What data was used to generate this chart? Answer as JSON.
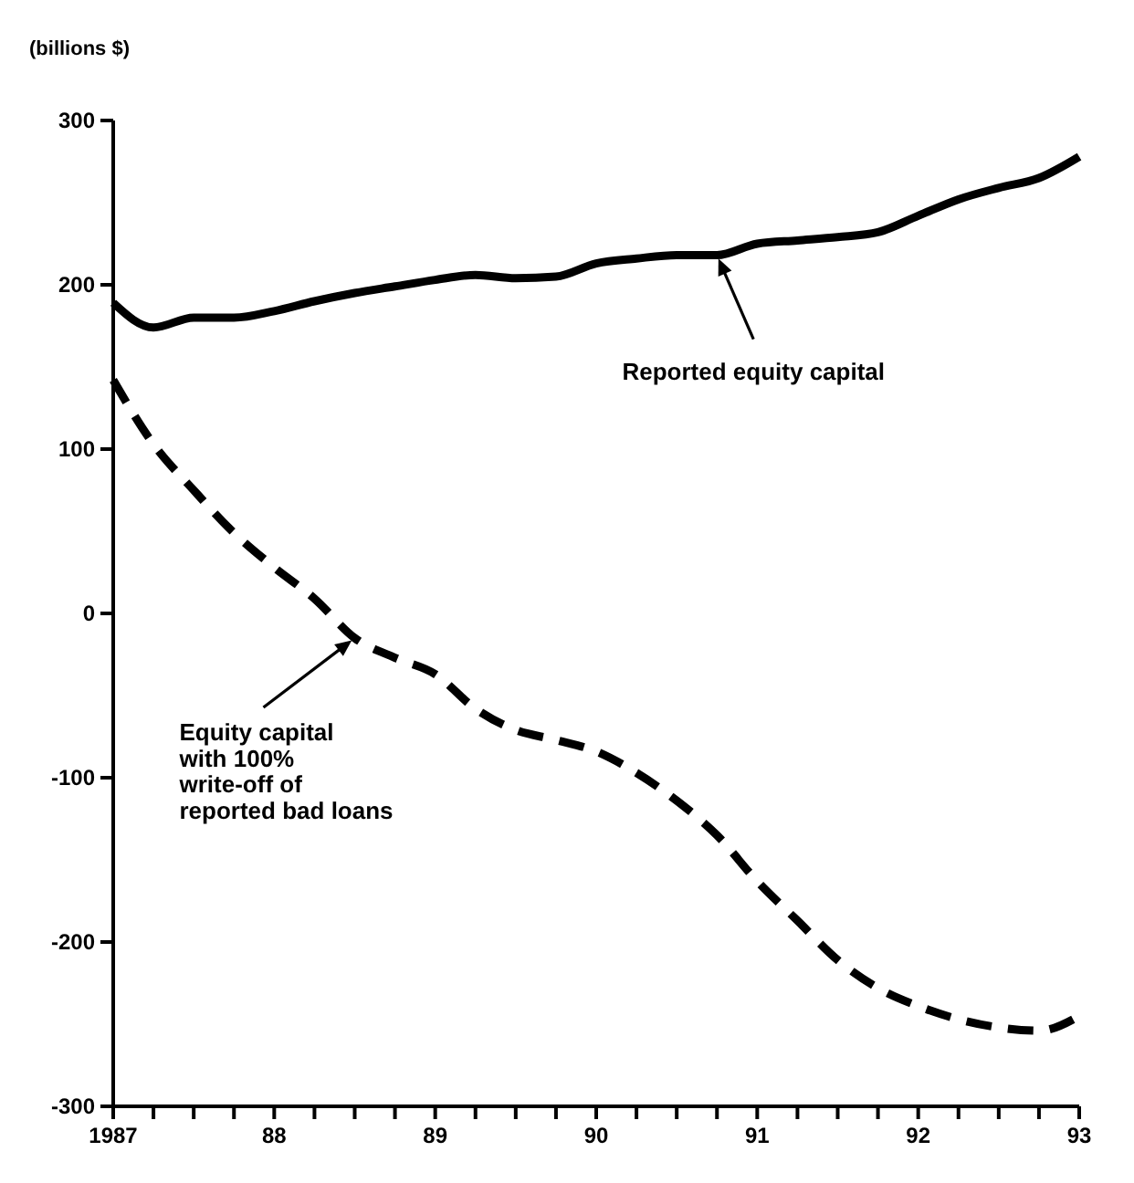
{
  "chart_data": {
    "type": "line",
    "ylabel": "(billions $)",
    "x": [
      1987,
      1987.25,
      1987.5,
      1987.75,
      1988,
      1988.25,
      1988.5,
      1988.75,
      1989,
      1989.25,
      1989.5,
      1989.75,
      1990,
      1990.25,
      1990.5,
      1990.75,
      1991,
      1991.25,
      1991.5,
      1991.75,
      1992,
      1992.25,
      1992.5,
      1992.75,
      1993
    ],
    "series": [
      {
        "color": "#000000",
        "line_style": "solid",
        "values": [
          189,
          174,
          180,
          180,
          184,
          190,
          195,
          199,
          203,
          206,
          204,
          205,
          213,
          216,
          218,
          218,
          225,
          227,
          229,
          232,
          242,
          252,
          259,
          265,
          278
        ]
      },
      {
        "color": "#000000",
        "line_style": "dashed",
        "values": [
          142,
          103,
          75,
          49,
          28,
          9,
          -15,
          -27,
          -37,
          -58,
          -71,
          -77,
          -84,
          -97,
          -114,
          -135,
          -163,
          -187,
          -211,
          -228,
          -239,
          -247,
          -252,
          -254,
          -245
        ]
      }
    ],
    "xlim": [
      1987,
      1993
    ],
    "xticks": [
      {
        "value": 1987,
        "label": "1987"
      },
      {
        "value": 1987.25,
        "label": null
      },
      {
        "value": 1987.5,
        "label": null
      },
      {
        "value": 1987.75,
        "label": null
      },
      {
        "value": 1988,
        "label": "88"
      },
      {
        "value": 1988.25,
        "label": null
      },
      {
        "value": 1988.5,
        "label": null
      },
      {
        "value": 1988.75,
        "label": null
      },
      {
        "value": 1989,
        "label": "89"
      },
      {
        "value": 1989.25,
        "label": null
      },
      {
        "value": 1989.5,
        "label": null
      },
      {
        "value": 1989.75,
        "label": null
      },
      {
        "value": 1990,
        "label": "90"
      },
      {
        "value": 1990.25,
        "label": null
      },
      {
        "value": 1990.5,
        "label": null
      },
      {
        "value": 1990.75,
        "label": null
      },
      {
        "value": 1991,
        "label": "91"
      },
      {
        "value": 1991.25,
        "label": null
      },
      {
        "value": 1991.5,
        "label": null
      },
      {
        "value": 1991.75,
        "label": null
      },
      {
        "value": 1992,
        "label": "92"
      },
      {
        "value": 1992.25,
        "label": null
      },
      {
        "value": 1992.5,
        "label": null
      },
      {
        "value": 1992.75,
        "label": null
      },
      {
        "value": 1993,
        "label": "93"
      }
    ],
    "ylim": [
      -300,
      300
    ],
    "yticks": [
      -300,
      -200,
      -100,
      0,
      100,
      200,
      300
    ],
    "grid": false,
    "marker": "none",
    "annotations": [
      {
        "text": "Reported equity capital",
        "x": 1990.75,
        "y": 218
      },
      {
        "text": "Equity capital\nwith 100%\nwrite-off of\nreported bad loans",
        "x": 1988.5,
        "y": -15
      }
    ]
  }
}
